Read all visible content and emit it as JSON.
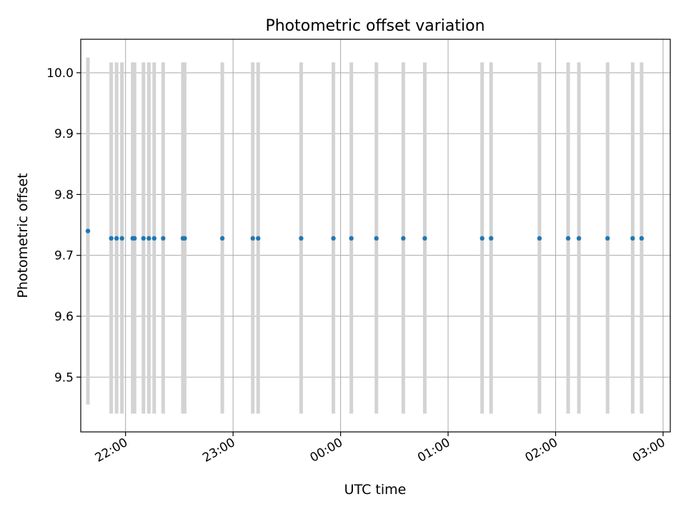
{
  "chart_data": {
    "type": "scatter",
    "title": "Photometric offset variation",
    "xlabel": "UTC time",
    "ylabel": "Photometric offset",
    "x_is_time": true,
    "x_ticks": [
      "22:00",
      "23:00",
      "00:00",
      "01:00",
      "02:00",
      "03:00"
    ],
    "y_ticks": [
      "9.5",
      "9.6",
      "9.7",
      "9.8",
      "9.9",
      "10.0"
    ],
    "xlim": [
      "21:35",
      "03:04"
    ],
    "ylim": [
      9.41,
      10.055
    ],
    "grid": true,
    "marker_color": "#1f77b4",
    "errorbar_color": "#d3d3d3",
    "points": [
      {
        "t": "21:39",
        "y": 9.74,
        "lo": 9.455,
        "hi": 10.025
      },
      {
        "t": "21:52",
        "y": 9.728,
        "lo": 9.44,
        "hi": 10.017
      },
      {
        "t": "21:55",
        "y": 9.728,
        "lo": 9.44,
        "hi": 10.017
      },
      {
        "t": "21:58",
        "y": 9.728,
        "lo": 9.44,
        "hi": 10.017
      },
      {
        "t": "22:04",
        "y": 9.728,
        "lo": 9.44,
        "hi": 10.017
      },
      {
        "t": "22:05",
        "y": 9.728,
        "lo": 9.44,
        "hi": 10.017
      },
      {
        "t": "22:10",
        "y": 9.728,
        "lo": 9.44,
        "hi": 10.017
      },
      {
        "t": "22:13",
        "y": 9.728,
        "lo": 9.44,
        "hi": 10.017
      },
      {
        "t": "22:16",
        "y": 9.728,
        "lo": 9.44,
        "hi": 10.017
      },
      {
        "t": "22:21",
        "y": 9.728,
        "lo": 9.44,
        "hi": 10.017
      },
      {
        "t": "22:32",
        "y": 9.728,
        "lo": 9.44,
        "hi": 10.017
      },
      {
        "t": "22:33",
        "y": 9.728,
        "lo": 9.44,
        "hi": 10.017
      },
      {
        "t": "22:54",
        "y": 9.728,
        "lo": 9.44,
        "hi": 10.017
      },
      {
        "t": "23:11",
        "y": 9.728,
        "lo": 9.44,
        "hi": 10.017
      },
      {
        "t": "23:14",
        "y": 9.728,
        "lo": 9.44,
        "hi": 10.017
      },
      {
        "t": "23:38",
        "y": 9.728,
        "lo": 9.44,
        "hi": 10.017
      },
      {
        "t": "23:56",
        "y": 9.728,
        "lo": 9.44,
        "hi": 10.017
      },
      {
        "t": "00:06",
        "y": 9.728,
        "lo": 9.44,
        "hi": 10.017
      },
      {
        "t": "00:20",
        "y": 9.728,
        "lo": 9.44,
        "hi": 10.017
      },
      {
        "t": "00:35",
        "y": 9.728,
        "lo": 9.44,
        "hi": 10.017
      },
      {
        "t": "00:47",
        "y": 9.728,
        "lo": 9.44,
        "hi": 10.017
      },
      {
        "t": "01:19",
        "y": 9.728,
        "lo": 9.44,
        "hi": 10.017
      },
      {
        "t": "01:24",
        "y": 9.728,
        "lo": 9.44,
        "hi": 10.017
      },
      {
        "t": "01:51",
        "y": 9.728,
        "lo": 9.44,
        "hi": 10.017
      },
      {
        "t": "02:07",
        "y": 9.728,
        "lo": 9.44,
        "hi": 10.017
      },
      {
        "t": "02:13",
        "y": 9.728,
        "lo": 9.44,
        "hi": 10.017
      },
      {
        "t": "02:29",
        "y": 9.728,
        "lo": 9.44,
        "hi": 10.017
      },
      {
        "t": "02:43",
        "y": 9.728,
        "lo": 9.44,
        "hi": 10.017
      },
      {
        "t": "02:48",
        "y": 9.728,
        "lo": 9.44,
        "hi": 10.017
      }
    ]
  }
}
